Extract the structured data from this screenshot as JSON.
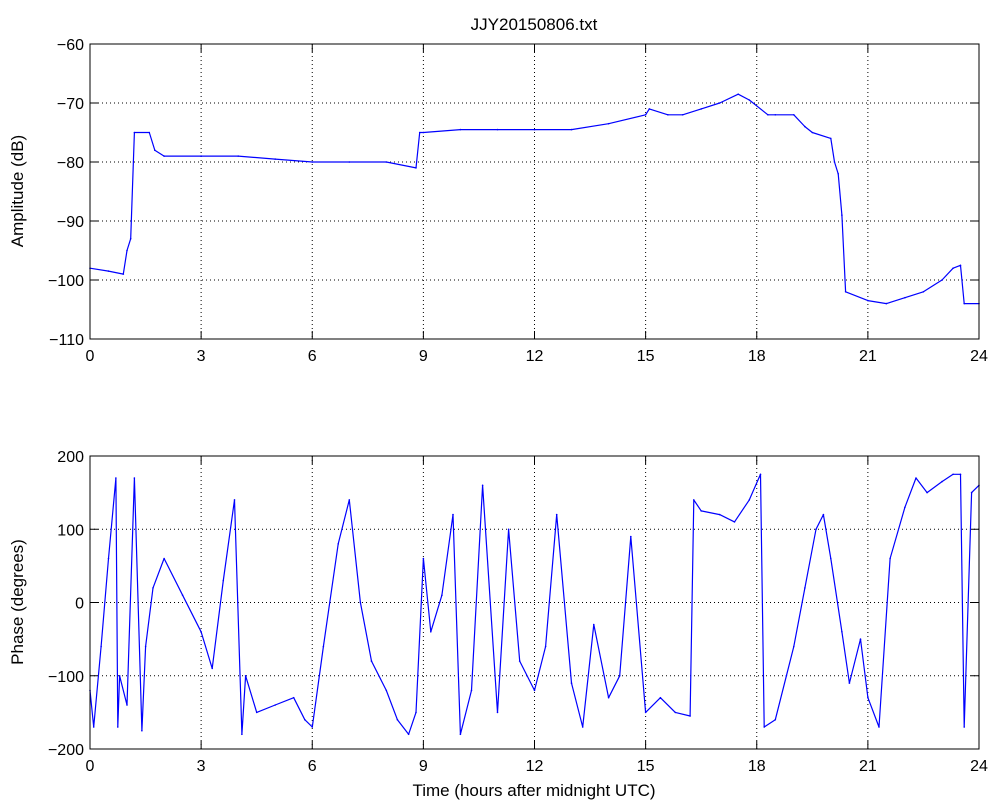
{
  "chart_data": [
    {
      "type": "line",
      "title": "JJY20150806.txt",
      "xlabel": "",
      "ylabel": "Amplitude (dB)",
      "xlim": [
        0,
        24
      ],
      "ylim": [
        -110,
        -60
      ],
      "xticks": [
        "0",
        "3",
        "6",
        "9",
        "12",
        "15",
        "18",
        "21",
        "24"
      ],
      "yticks": [
        "−60",
        "−70",
        "−80",
        "−90",
        "−100",
        "−110"
      ],
      "grid": true,
      "line_color": "#0000ff",
      "x": [
        0,
        0.5,
        0.9,
        1.0,
        1.1,
        1.2,
        1.6,
        1.75,
        2.0,
        3.0,
        4.0,
        5.0,
        6.0,
        7.0,
        8.0,
        8.8,
        8.9,
        9.0,
        10.0,
        11.0,
        12.0,
        13.0,
        14.0,
        15.0,
        15.1,
        15.6,
        16.0,
        16.5,
        17.0,
        17.5,
        17.8,
        18.3,
        18.5,
        19.0,
        19.3,
        19.5,
        20.0,
        20.1,
        20.2,
        20.3,
        20.4,
        21.0,
        21.5,
        22.0,
        22.5,
        23.0,
        23.3,
        23.5,
        23.6,
        24.0
      ],
      "values": [
        -98,
        -98.5,
        -99,
        -95,
        -93,
        -75,
        -75,
        -78,
        -79,
        -79,
        -79,
        -79.5,
        -80,
        -80,
        -80,
        -81,
        -75,
        -75,
        -74.5,
        -74.5,
        -74.5,
        -74.5,
        -73.5,
        -72,
        -71,
        -72,
        -72,
        -71,
        -70,
        -68.5,
        -69.5,
        -72,
        -72,
        -72,
        -74,
        -75,
        -76,
        -80,
        -82,
        -89,
        -102,
        -103.5,
        -104,
        -103,
        -102,
        -100,
        -98,
        -97.5,
        -104,
        -104
      ]
    },
    {
      "type": "line",
      "title": "",
      "xlabel": "Time (hours after midnight UTC)",
      "ylabel": "Phase (degrees)",
      "xlim": [
        0,
        24
      ],
      "ylim": [
        -200,
        200
      ],
      "xticks": [
        "0",
        "3",
        "6",
        "9",
        "12",
        "15",
        "18",
        "21",
        "24"
      ],
      "yticks": [
        "200",
        "100",
        "0",
        "−100",
        "−200"
      ],
      "grid": true,
      "line_color": "#0000ff",
      "x": [
        0,
        0.1,
        0.3,
        0.5,
        0.7,
        0.75,
        0.8,
        1.0,
        1.2,
        1.4,
        1.5,
        1.7,
        2.0,
        2.5,
        3.0,
        3.3,
        3.6,
        3.9,
        4.1,
        4.2,
        4.5,
        5.0,
        5.5,
        5.8,
        6.0,
        6.3,
        6.7,
        7.0,
        7.3,
        7.6,
        8.0,
        8.3,
        8.6,
        8.8,
        9.0,
        9.2,
        9.5,
        9.8,
        10.0,
        10.3,
        10.6,
        11.0,
        11.3,
        11.6,
        12.0,
        12.3,
        12.6,
        13.0,
        13.3,
        13.6,
        14.0,
        14.3,
        14.6,
        15.0,
        15.4,
        15.8,
        16.2,
        16.3,
        16.5,
        17.0,
        17.4,
        17.8,
        18.1,
        18.2,
        18.5,
        18.8,
        19.0,
        19.3,
        19.6,
        19.8,
        20.0,
        20.3,
        20.5,
        20.8,
        21.0,
        21.3,
        21.6,
        22.0,
        22.3,
        22.6,
        23.0,
        23.3,
        23.5,
        23.6,
        23.8,
        24.0
      ],
      "values": [
        -120,
        -170,
        -60,
        60,
        170,
        -170,
        -100,
        -140,
        170,
        -175,
        -60,
        20,
        60,
        10,
        -40,
        -90,
        30,
        140,
        -180,
        -100,
        -150,
        -140,
        -130,
        -160,
        -170,
        -60,
        80,
        140,
        0,
        -80,
        -120,
        -160,
        -180,
        -150,
        60,
        -40,
        10,
        120,
        -180,
        -120,
        160,
        -150,
        100,
        -80,
        -120,
        -60,
        120,
        -110,
        -170,
        -30,
        -130,
        -100,
        90,
        -150,
        -130,
        -150,
        -155,
        140,
        125,
        120,
        110,
        140,
        175,
        -170,
        -160,
        -100,
        -60,
        20,
        100,
        120,
        60,
        -40,
        -110,
        -50,
        -130,
        -170,
        60,
        130,
        170,
        150,
        165,
        175,
        175,
        -170,
        150,
        160
      ]
    }
  ]
}
